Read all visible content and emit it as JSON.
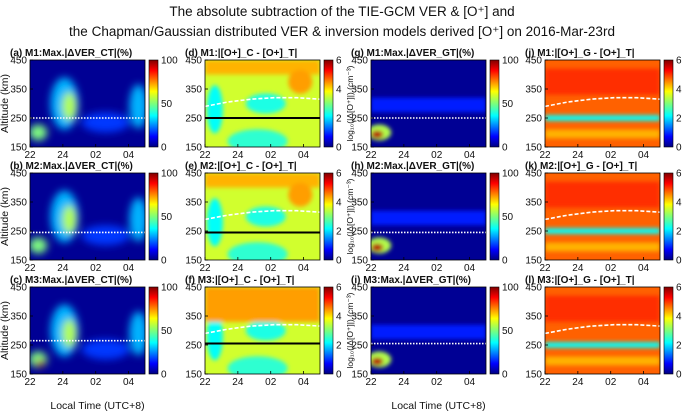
{
  "title": {
    "line1": "The absolute subtraction of the TIE-GCM VER & [O⁺] and",
    "line2": "the Chapman/Gaussian distributed VER & inversion models derived [O⁺] on 2016-Mar-23rd"
  },
  "axes": {
    "ylabel": "Altitude (km)",
    "xlabel": "Local Time (UTC+8)",
    "xticks": [
      "22",
      "24",
      "02",
      "04"
    ],
    "yticks": [
      "450",
      "350",
      "250",
      "150"
    ]
  },
  "colorbars": {
    "ver": {
      "ticks": [
        "100",
        "50",
        "0"
      ],
      "label": ""
    },
    "oplus": {
      "ticks": [
        "6",
        "4",
        "2",
        "0"
      ],
      "label": "log₁₀(|Δ[O⁺]|) (cm⁻³)"
    }
  },
  "chart_data": [
    {
      "type": "heatmap",
      "panel": "(a)",
      "title": "M1:Max.|ΔVER_CT|(%)",
      "quantity": "VER",
      "model": "Chapman",
      "row": "M1",
      "xlim": [
        22,
        29
      ],
      "ylim": [
        150,
        450
      ],
      "clim": [
        0,
        100
      ],
      "white_line_altitude_km": 250,
      "colormap": "jet"
    },
    {
      "type": "heatmap",
      "panel": "(b)",
      "title": "M2:Max.|ΔVER_CT|(%)",
      "quantity": "VER",
      "model": "Chapman",
      "row": "M2",
      "xlim": [
        22,
        29
      ],
      "ylim": [
        150,
        450
      ],
      "clim": [
        0,
        100
      ],
      "white_line_altitude_km": 245,
      "colormap": "jet"
    },
    {
      "type": "heatmap",
      "panel": "(c)",
      "title": "M3:Max.|ΔVER_CT|(%)",
      "quantity": "VER",
      "model": "Chapman",
      "row": "M3",
      "xlim": [
        22,
        29
      ],
      "ylim": [
        150,
        450
      ],
      "clim": [
        0,
        100
      ],
      "white_line_altitude_km": 265,
      "colormap": "jet"
    },
    {
      "type": "heatmap",
      "panel": "(d)",
      "title": "M1:|[O+]_C - [O+]_T|",
      "quantity": "Oplus",
      "model": "Chapman",
      "row": "M1",
      "xlim": [
        22,
        29
      ],
      "ylim": [
        150,
        450
      ],
      "clim": [
        0,
        6
      ],
      "black_line_altitude_km": 250,
      "dashed_line_altitude_km": [
        290,
        305,
        315,
        320,
        320,
        315
      ],
      "colormap": "jet"
    },
    {
      "type": "heatmap",
      "panel": "(e)",
      "title": "M2:|[O+]_C - [O+]_T|",
      "quantity": "Oplus",
      "model": "Chapman",
      "row": "M2",
      "xlim": [
        22,
        29
      ],
      "ylim": [
        150,
        450
      ],
      "clim": [
        0,
        6
      ],
      "black_line_altitude_km": 245,
      "dashed_line_altitude_km": [
        290,
        305,
        315,
        320,
        320,
        315
      ],
      "colormap": "jet"
    },
    {
      "type": "heatmap",
      "panel": "(f)",
      "title": "M3:|[O+]_C - [O+]_T|",
      "quantity": "Oplus",
      "model": "Chapman",
      "row": "M3",
      "xlim": [
        22,
        29
      ],
      "ylim": [
        150,
        450
      ],
      "clim": [
        0,
        6
      ],
      "black_line_altitude_km": 255,
      "dashed_line_altitude_km": [
        290,
        305,
        315,
        320,
        320,
        315
      ],
      "colormap": "jet"
    },
    {
      "type": "heatmap",
      "panel": "(g)",
      "title": "M1:Max.|ΔVER_GT|(%)",
      "quantity": "VER",
      "model": "Gaussian",
      "row": "M1",
      "xlim": [
        22,
        29
      ],
      "ylim": [
        150,
        450
      ],
      "clim": [
        0,
        100
      ],
      "white_line_altitude_km": 250,
      "colormap": "jet"
    },
    {
      "type": "heatmap",
      "panel": "(h)",
      "title": "M2:Max.|ΔVER_GT|(%)",
      "quantity": "VER",
      "model": "Gaussian",
      "row": "M2",
      "xlim": [
        22,
        29
      ],
      "ylim": [
        150,
        450
      ],
      "clim": [
        0,
        100
      ],
      "white_line_altitude_km": 245,
      "colormap": "jet"
    },
    {
      "type": "heatmap",
      "panel": "(i)",
      "title": "M3:Max.|ΔVER_GT|(%)",
      "quantity": "VER",
      "model": "Gaussian",
      "row": "M3",
      "xlim": [
        22,
        29
      ],
      "ylim": [
        150,
        450
      ],
      "clim": [
        0,
        100
      ],
      "white_line_altitude_km": 255,
      "colormap": "jet"
    },
    {
      "type": "heatmap",
      "panel": "(j)",
      "title": "M1:|[O+]_G - [O+]_T|",
      "quantity": "Oplus",
      "model": "Gaussian",
      "row": "M1",
      "xlim": [
        22,
        29
      ],
      "ylim": [
        150,
        450
      ],
      "clim": [
        0,
        6
      ],
      "dashed_line_altitude_km": [
        290,
        305,
        315,
        320,
        320,
        315
      ],
      "colormap": "jet"
    },
    {
      "type": "heatmap",
      "panel": "(k)",
      "title": "M2:|[O+]_G - [O+]_T|",
      "quantity": "Oplus",
      "model": "Gaussian",
      "row": "M2",
      "xlim": [
        22,
        29
      ],
      "ylim": [
        150,
        450
      ],
      "clim": [
        0,
        6
      ],
      "dashed_line_altitude_km": [
        290,
        305,
        315,
        320,
        320,
        315
      ],
      "colormap": "jet"
    },
    {
      "type": "heatmap",
      "panel": "(l)",
      "title": "M3:|[O+]_G - [O+]_T|",
      "quantity": "Oplus",
      "model": "Gaussian",
      "row": "M3",
      "xlim": [
        22,
        29
      ],
      "ylim": [
        150,
        450
      ],
      "clim": [
        0,
        6
      ],
      "dashed_line_altitude_km": [
        290,
        305,
        315,
        320,
        320,
        315
      ],
      "colormap": "jet"
    }
  ]
}
